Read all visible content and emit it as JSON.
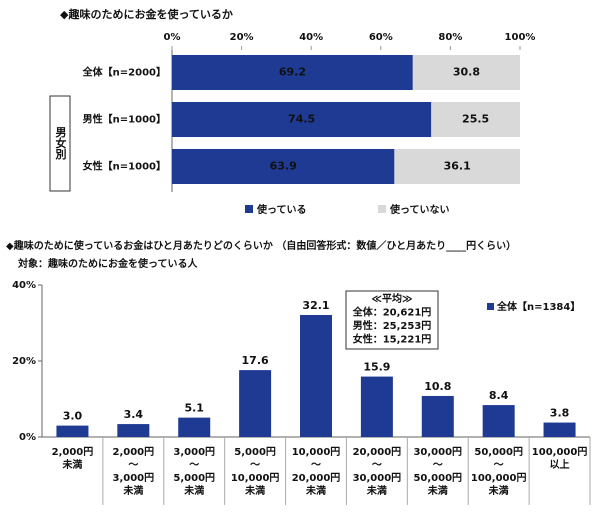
{
  "chart_data": [
    {
      "type": "bar",
      "orientation": "horizontal",
      "stacked": true,
      "title": "◆趣味のためにお金を使っているか",
      "group_label": "男女別",
      "categories": [
        "全体【n=2000】",
        "男性【n=1000】",
        "女性【n=1000】"
      ],
      "series": [
        {
          "name": "使っている",
          "color": "#1f3a93",
          "values": [
            69.2,
            74.5,
            63.9
          ]
        },
        {
          "name": "使っていない",
          "color": "#d9d9d9",
          "values": [
            30.8,
            25.5,
            36.1
          ]
        }
      ],
      "xlim": [
        0,
        100
      ],
      "xticks": [
        {
          "value": 0,
          "label": "0%"
        },
        {
          "value": 20,
          "label": "20%"
        },
        {
          "value": 40,
          "label": "40%"
        },
        {
          "value": 60,
          "label": "60%"
        },
        {
          "value": 80,
          "label": "80%"
        },
        {
          "value": 100,
          "label": "100%"
        }
      ],
      "grid": false,
      "legend": "bottom"
    },
    {
      "type": "bar",
      "orientation": "vertical",
      "title": "◆趣味のために使っているお金はひと月あたりどのくらいか （自由回答形式：数値／ひと月あたり____円くらい）",
      "subtitle": "対象：趣味のためにお金を使っている人",
      "categories": [
        [
          "2,000円",
          "未満"
        ],
        [
          "2,000円",
          "～",
          "3,000円",
          "未満"
        ],
        [
          "3,000円",
          "～",
          "5,000円",
          "未満"
        ],
        [
          "5,000円",
          "～",
          "10,000円",
          "未満"
        ],
        [
          "10,000円",
          "～",
          "20,000円",
          "未満"
        ],
        [
          "20,000円",
          "～",
          "30,000円",
          "未満"
        ],
        [
          "30,000円",
          "～",
          "50,000円",
          "未満"
        ],
        [
          "50,000円",
          "～",
          "100,000円",
          "未満"
        ],
        [
          "100,000円",
          "以上"
        ]
      ],
      "series": [
        {
          "name": "全体【n=1384】",
          "color": "#1f3a93",
          "values": [
            3.0,
            3.4,
            5.1,
            17.6,
            32.1,
            15.9,
            10.8,
            8.4,
            3.8
          ],
          "value_labels": [
            "3.0",
            "3.4",
            "5.1",
            "17.6",
            "32.1",
            "15.9",
            "10.8",
            "8.4",
            "3.8"
          ]
        }
      ],
      "ylim": [
        0,
        40
      ],
      "yticks": [
        {
          "value": 0,
          "label": "0%"
        },
        {
          "value": 20,
          "label": "20%"
        },
        {
          "value": 40,
          "label": "40%"
        }
      ],
      "annotation": [
        "≪平均≫",
        "全体：20,621円",
        "男性：25,253円",
        "女性：15,221円"
      ],
      "grid": false,
      "legend": "top-right"
    }
  ]
}
